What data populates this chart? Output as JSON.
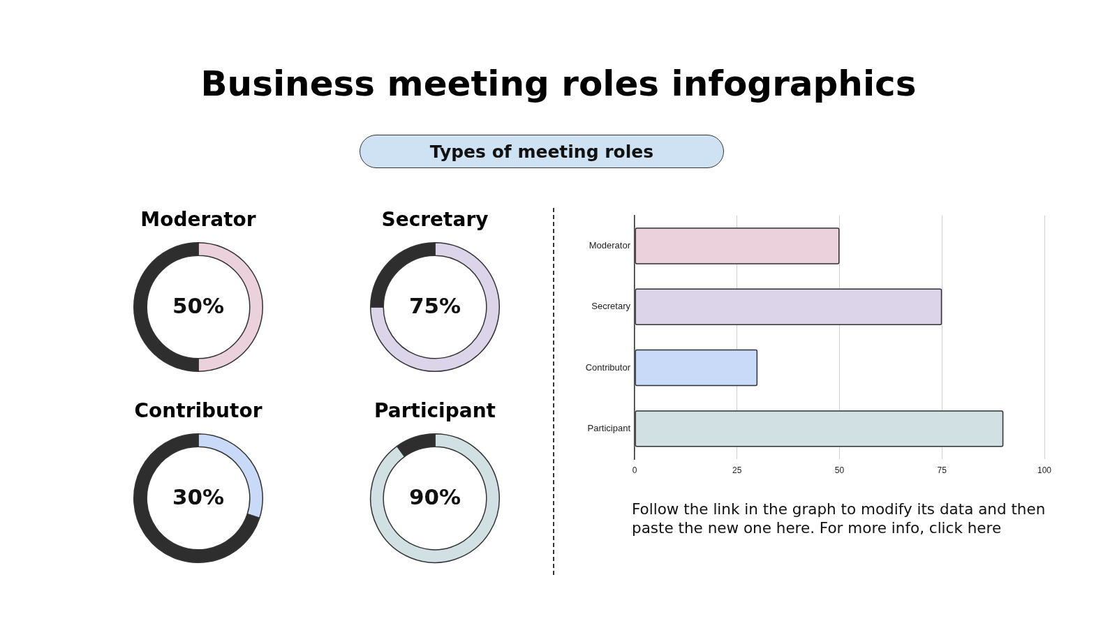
{
  "chart_data": [
    {
      "type": "other",
      "title": "Business meeting roles infographics",
      "subtitle": "Types of meeting roles"
    },
    {
      "type": "donut",
      "title": "Moderator",
      "categories": [
        null,
        null
      ],
      "values": [
        50,
        50
      ],
      "colors": [
        "#ead1dc",
        "#2e2e2e"
      ],
      "value_labels": [
        "50%",
        null
      ]
    },
    {
      "type": "donut",
      "title": "Secretary",
      "categories": [
        null,
        null
      ],
      "values": [
        75,
        25
      ],
      "colors": [
        "#dcd5ea",
        "#2e2e2e"
      ],
      "value_labels": [
        "75%",
        null
      ]
    },
    {
      "type": "donut",
      "title": "Contributor",
      "categories": [
        null,
        null
      ],
      "values": [
        30,
        70
      ],
      "colors": [
        "#c9daf8",
        "#2e2e2e"
      ],
      "value_labels": [
        "30%",
        null
      ]
    },
    {
      "type": "donut",
      "title": "Participant",
      "categories": [
        null,
        null
      ],
      "values": [
        90,
        10
      ],
      "colors": [
        "#d0e0e3",
        "#2e2e2e"
      ],
      "value_labels": [
        "90%",
        null
      ]
    },
    {
      "type": "bar",
      "orientation": "horizontal",
      "categories": [
        "Moderator",
        "Secretary",
        "Contributor",
        "Participant"
      ],
      "values": [
        50,
        75,
        30,
        90
      ],
      "colors": [
        "#ead1dc",
        "#dcd5ea",
        "#c9daf8",
        "#d0e0e3"
      ],
      "xlim": [
        0,
        100
      ],
      "xticks": [
        0,
        25,
        50,
        75,
        100
      ],
      "grid": "x",
      "annotations": [
        "Follow the link in the graph to modify its data and then paste the new one here. For more info, click here"
      ]
    }
  ]
}
